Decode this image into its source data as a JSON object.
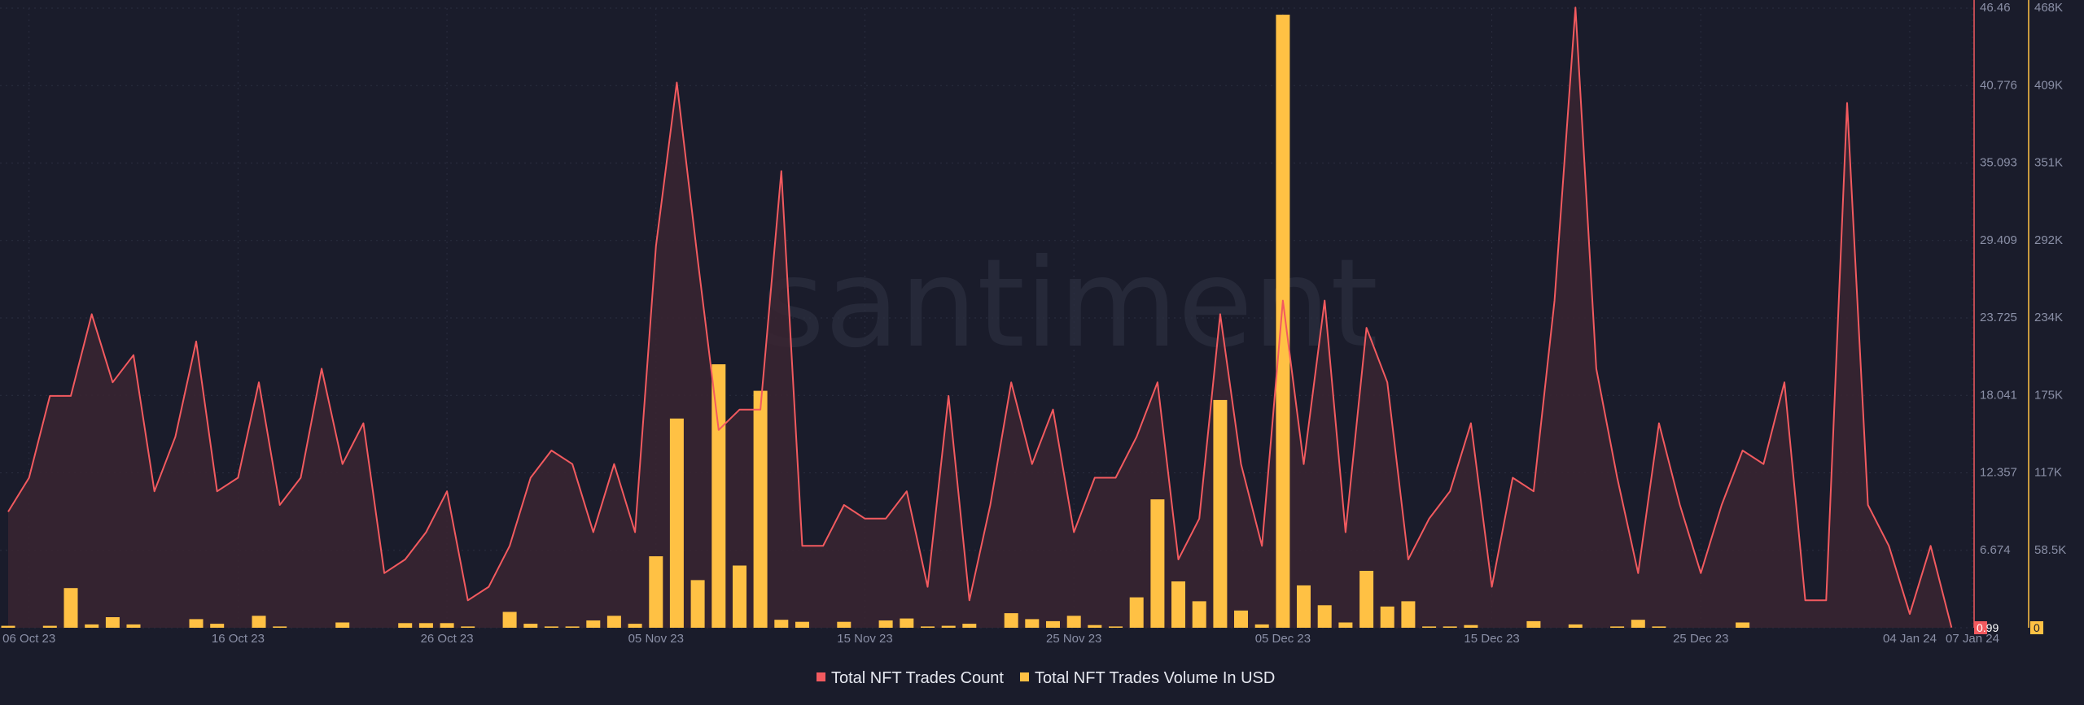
{
  "watermark": "santiment",
  "colors": {
    "background": "#1a1c2b",
    "count": "#f25a5f",
    "count_fill": "#3a2431",
    "volume": "#ffc144",
    "grid": "#2b2e40",
    "axis_text": "#8a8fa6",
    "legend_text": "#e6e8f0"
  },
  "legend": {
    "count_label": "Total NFT Trades Count",
    "volume_label": "Total NFT Trades Volume In USD"
  },
  "chart_data": {
    "type": "bar",
    "xlabel": "",
    "x_ticks": [
      "06 Oct 23",
      "16 Oct 23",
      "26 Oct 23",
      "05 Nov 23",
      "15 Nov 23",
      "25 Nov 23",
      "05 Dec 23",
      "15 Dec 23",
      "25 Dec 23",
      "04 Jan 24",
      "07 Jan 24"
    ],
    "x_tick_index": [
      1,
      11,
      21,
      31,
      41,
      51,
      61,
      71,
      81,
      91,
      94
    ],
    "left_axis": {
      "ticks": [
        "46.46",
        "40.776",
        "35.093",
        "29.409",
        "23.725",
        "18.041",
        "12.357",
        "6.674",
        "0.99"
      ],
      "range": [
        0.99,
        46.46
      ],
      "current_value": "0.99"
    },
    "right_axis": {
      "ticks": [
        "468K",
        "409K",
        "351K",
        "292K",
        "234K",
        "175K",
        "117K",
        "58.5K",
        "0"
      ],
      "range": [
        0,
        468000
      ],
      "current_value": "0"
    },
    "series": [
      {
        "name": "Total NFT Trades Count",
        "type": "area",
        "axis": "left",
        "values": [
          9.5,
          12,
          18,
          18,
          24,
          19,
          21,
          11,
          15,
          22,
          11,
          12,
          19,
          10,
          12,
          20,
          13,
          16,
          5,
          6,
          8,
          11,
          3,
          4,
          7,
          12,
          14,
          13,
          8,
          13,
          8,
          29,
          41,
          28,
          15.5,
          17,
          17,
          34.5,
          7,
          7,
          10,
          9,
          9,
          11,
          4,
          18,
          3,
          10,
          19,
          13,
          17,
          8,
          12,
          12,
          15,
          19,
          6,
          9,
          24,
          13,
          7,
          25,
          13,
          25,
          8,
          23,
          19,
          6,
          9,
          11,
          16,
          4,
          12,
          11,
          25,
          46.5,
          20,
          12,
          5,
          16,
          10,
          5,
          10,
          14,
          13,
          19,
          3,
          3,
          39.5,
          10,
          7,
          2,
          7,
          1
        ]
      },
      {
        "name": "Total NFT Trades Volume In USD",
        "type": "bar",
        "axis": "right",
        "values": [
          1500,
          0,
          1500,
          30000,
          2500,
          8000,
          2500,
          0,
          0,
          6500,
          3000,
          0,
          9000,
          1000,
          0,
          0,
          4000,
          0,
          0,
          3500,
          3500,
          3500,
          1000,
          0,
          12000,
          3000,
          1000,
          1000,
          5500,
          9000,
          3000,
          54000,
          158000,
          36000,
          199000,
          47000,
          179000,
          6000,
          4500,
          0,
          4500,
          0,
          5500,
          7000,
          1000,
          1500,
          3000,
          0,
          11000,
          6500,
          5000,
          9000,
          2000,
          1000,
          23000,
          97000,
          35000,
          20000,
          172000,
          13000,
          2500,
          463000,
          32000,
          17000,
          4000,
          43000,
          16000,
          20000,
          1000,
          1000,
          2000,
          0,
          0,
          5000,
          0,
          2500,
          0,
          1000,
          6000,
          1000,
          0,
          0,
          0,
          4000,
          0,
          0,
          0,
          0,
          0,
          0,
          0,
          0,
          0,
          0
        ]
      }
    ],
    "grid": true,
    "legend_position": "bottom-center"
  }
}
